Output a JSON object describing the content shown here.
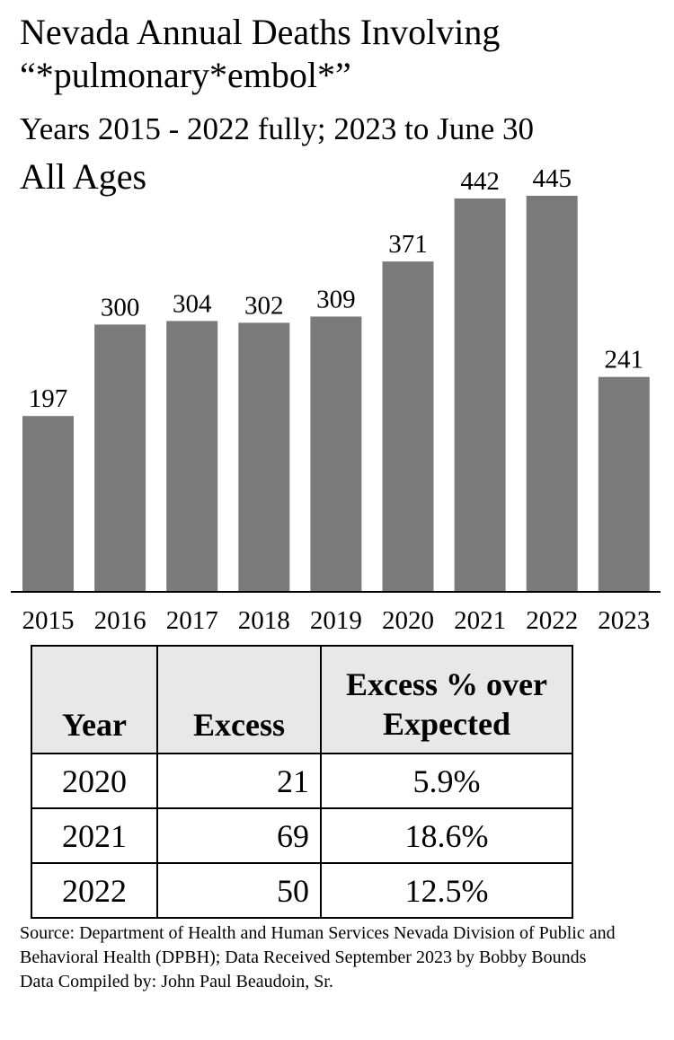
{
  "header": {
    "title_line1": "Nevada Annual Deaths Involving",
    "title_line2": "“*pulmonary*embol*”",
    "subtitle": "Years 2015 - 2022 fully; 2023 to June 30",
    "ages": "All Ages"
  },
  "chart_data": {
    "type": "bar",
    "title": "Nevada Annual Deaths Involving “*pulmonary*embol*”",
    "subtitle": "Years 2015 - 2022 fully; 2023 to June 30",
    "categories": [
      "2015",
      "2016",
      "2017",
      "2018",
      "2019",
      "2020",
      "2021",
      "2022",
      "2023"
    ],
    "values": [
      197,
      300,
      304,
      302,
      309,
      371,
      442,
      445,
      241
    ],
    "ylim": [
      0,
      445
    ],
    "bar_color": "#7a7a7a",
    "grid": false,
    "xlabel": "",
    "ylabel": ""
  },
  "table": {
    "headers": [
      "Year",
      "Excess",
      "Excess % over Expected"
    ],
    "rows": [
      [
        "2020",
        "21",
        "5.9%"
      ],
      [
        "2021",
        "69",
        "18.6%"
      ],
      [
        "2022",
        "50",
        "12.5%"
      ]
    ],
    "header_bg": "#e8e8e8"
  },
  "footer": {
    "source": "Source:  Department of Health and Human Services Nevada Division of Public and Behavioral Health (DPBH); Data Received September 2023 by Bobby Bounds",
    "compiled": "Data Compiled by:  John Paul Beaudoin, Sr."
  }
}
